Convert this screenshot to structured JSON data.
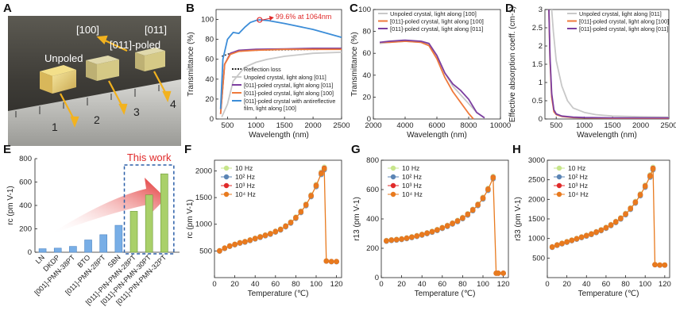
{
  "panel_labels": {
    "a": "A",
    "b": "B",
    "c": "C",
    "d": "D",
    "e": "E",
    "f": "F",
    "g": "G",
    "h": "H"
  },
  "colors": {
    "gray": "#c8c8c8",
    "orange": "#ef7a3c",
    "purple": "#7c3fa0",
    "blue": "#3c8dd8",
    "red": "#e02a2a",
    "lightgreen": "#c7e58a",
    "steelblue": "#5b85b5",
    "dkorange": "#e87a1e",
    "green_bar": "#9fcf63",
    "blue_bar": "#6fa8e0"
  },
  "photo": {
    "labels": {
      "unpoled": "Unpoled",
      "dir100": "[100]",
      "poled": "[011]-poled",
      "dir011": "[011]"
    },
    "ruler_numbers": [
      "1",
      "2",
      "3",
      "4"
    ]
  },
  "chart_data": [
    {
      "id": "B",
      "type": "line",
      "xlabel": "Wavelength (nm)",
      "ylabel": "Transmittance (%)",
      "xlim": [
        300,
        2500
      ],
      "ylim": [
        0,
        110
      ],
      "xticks": [
        500,
        1000,
        1500,
        2000,
        2500
      ],
      "yticks": [
        0,
        20,
        40,
        60,
        80,
        100
      ],
      "annotation": "99.6% at 1064nm",
      "legend": [
        "Reflection loss",
        "Unpoled crystal, light along [011]",
        "[011]-poled crystal, light along [011]",
        "[011]-poled crystal, light along [100]",
        "[011]-poled crystal with antireflective film, light along [100]"
      ],
      "series": [
        {
          "name": "Reflection loss",
          "color": "#222222",
          "dashed": true,
          "x": [
            400,
            600,
            800,
            1000,
            1500,
            2000,
            2500
          ],
          "y": [
            63,
            67,
            68.5,
            69,
            69.5,
            69.8,
            70
          ]
        },
        {
          "name": "Unpoled crystal, light along [011]",
          "color": "#c8c8c8",
          "x": [
            400,
            500,
            600,
            800,
            1000,
            1200,
            1500,
            2000,
            2500
          ],
          "y": [
            2,
            15,
            38,
            52,
            57,
            60,
            63,
            66,
            67
          ]
        },
        {
          "name": "[011]-poled crystal, light along [011]",
          "color": "#7c3fa0",
          "x": [
            380,
            450,
            550,
            700,
            1000,
            1500,
            2000,
            2500
          ],
          "y": [
            5,
            55,
            66,
            69,
            70,
            70.5,
            71,
            71
          ]
        },
        {
          "name": "[011]-poled crystal, light along [100]",
          "color": "#ef7a3c",
          "x": [
            380,
            450,
            550,
            700,
            1000,
            1500,
            2000,
            2500
          ],
          "y": [
            5,
            55,
            65,
            68,
            69,
            70,
            70,
            70
          ]
        },
        {
          "name": "[011]-poled crystal with antireflective film, light along [100]",
          "color": "#3c8dd8",
          "x": [
            380,
            420,
            500,
            600,
            700,
            800,
            900,
            1000,
            1064,
            1200,
            1500,
            2000,
            2500
          ],
          "y": [
            10,
            60,
            80,
            87,
            86,
            92,
            97,
            99,
            99.6,
            99,
            96,
            90,
            82
          ]
        }
      ]
    },
    {
      "id": "C",
      "type": "line",
      "xlabel": "Wavelength (nm)",
      "ylabel": "Transmittance (%)",
      "xlim": [
        2000,
        10000
      ],
      "ylim": [
        0,
        100
      ],
      "xticks": [
        2000,
        4000,
        6000,
        8000,
        10000
      ],
      "yticks": [
        0,
        20,
        40,
        60,
        80,
        100
      ],
      "legend": [
        "Unpoled crystal, light along [100]",
        "[011]-poled crystal, light along [100]",
        "[011]-poled crystal, light along [011]"
      ],
      "series": [
        {
          "name": "Unpoled crystal, light along [100]",
          "color": "#c8c8c8",
          "x": [
            2400,
            3000,
            4000,
            5000,
            5500,
            6000,
            6500,
            7000,
            7500,
            8000,
            8500,
            9000
          ],
          "y": [
            69,
            70,
            71,
            70,
            68,
            58,
            42,
            30,
            22,
            14,
            6,
            1
          ]
        },
        {
          "name": "[011]-poled crystal, light along [100]",
          "color": "#ef7a3c",
          "x": [
            2400,
            3000,
            4000,
            5000,
            5500,
            6000,
            6500,
            7000,
            7500,
            8000,
            8300
          ],
          "y": [
            70,
            70,
            71,
            70,
            67,
            55,
            38,
            25,
            15,
            5,
            0
          ]
        },
        {
          "name": "[011]-poled crystal, light along [011]",
          "color": "#7c3fa0",
          "x": [
            2400,
            3000,
            4000,
            5000,
            5500,
            6000,
            6500,
            7000,
            7500,
            8000,
            8500,
            9000
          ],
          "y": [
            70,
            71,
            72,
            71,
            69,
            58,
            42,
            32,
            26,
            18,
            6,
            1
          ]
        }
      ]
    },
    {
      "id": "D",
      "type": "line",
      "xlabel": "Wavelength (nm)",
      "ylabel": "Effective absorption coeff. (cm-1)",
      "xlim": [
        300,
        2500
      ],
      "ylim": [
        0,
        3.0
      ],
      "xticks": [
        500,
        1000,
        1500,
        2000,
        2500
      ],
      "yticks": [
        0,
        0.5,
        1.0,
        1.5,
        2.0,
        2.5,
        3.0
      ],
      "legend": [
        "Unpoled crystal, light along [011]",
        "[011]-poled crystal, light along [100]",
        "[011]-poled crystal, light along [011]"
      ],
      "series": [
        {
          "name": "Unpoled crystal, light along [011]",
          "color": "#c8c8c8",
          "x": [
            420,
            450,
            500,
            600,
            700,
            800,
            1000,
            1200,
            1500,
            2000,
            2500
          ],
          "y": [
            3.0,
            2.4,
            1.6,
            0.9,
            0.5,
            0.3,
            0.18,
            0.12,
            0.08,
            0.06,
            0.05
          ]
        },
        {
          "name": "[011]-poled crystal, light along [100]",
          "color": "#ef7a3c",
          "x": [
            370,
            390,
            420,
            460,
            500,
            600,
            800,
            1000,
            1500,
            2000,
            2500
          ],
          "y": [
            3.0,
            1.6,
            0.6,
            0.2,
            0.12,
            0.07,
            0.04,
            0.03,
            0.02,
            0.02,
            0.02
          ]
        },
        {
          "name": "[011]-poled crystal, light along [011]",
          "color": "#7c3fa0",
          "x": [
            370,
            390,
            420,
            460,
            500,
            600,
            800,
            1000,
            1500,
            2000,
            2500
          ],
          "y": [
            3.0,
            1.7,
            0.7,
            0.25,
            0.14,
            0.08,
            0.05,
            0.04,
            0.03,
            0.03,
            0.03
          ]
        }
      ]
    },
    {
      "id": "E",
      "type": "bar",
      "ylabel": "rc (pm V-1)",
      "ylim": [
        0,
        800
      ],
      "yticks": [
        0,
        200,
        400,
        600,
        800
      ],
      "annotation": "This work",
      "categories": [
        "LN",
        "DKDP",
        "[001]-PMN-38PT",
        "BTO",
        "[011]-PMN-28PT",
        "SBN",
        "[011]-PIN-PMN-28PT",
        "[011]-PIN-PMN-30PT",
        "[011]-PIN-PMN-32PT"
      ],
      "values": [
        30,
        35,
        50,
        105,
        150,
        230,
        350,
        490,
        670
      ],
      "highlight_from": 6
    },
    {
      "id": "F",
      "type": "scatter",
      "xlabel": "Temperature (℃)",
      "ylabel": "rc (pm V-1)",
      "xlim": [
        0,
        125
      ],
      "ylim": [
        0,
        2200
      ],
      "xticks": [
        0,
        20,
        40,
        60,
        80,
        100,
        120
      ],
      "yticks": [
        500,
        1000,
        1500,
        2000
      ],
      "legend": [
        "10 Hz",
        "10² Hz",
        "10³ Hz",
        "10⁴ Hz"
      ],
      "x": [
        5,
        10,
        15,
        20,
        25,
        30,
        35,
        40,
        45,
        50,
        55,
        60,
        65,
        70,
        75,
        80,
        85,
        90,
        95,
        100,
        105,
        108,
        110,
        115,
        120
      ],
      "y": [
        500,
        550,
        590,
        620,
        650,
        670,
        700,
        730,
        760,
        790,
        820,
        860,
        900,
        960,
        1030,
        1120,
        1230,
        1360,
        1530,
        1720,
        1950,
        2040,
        310,
        300,
        300
      ]
    },
    {
      "id": "G",
      "type": "scatter",
      "xlabel": "Temperature (℃)",
      "ylabel": "r13 (pm V-1)",
      "xlim": [
        0,
        125
      ],
      "ylim": [
        0,
        800
      ],
      "xticks": [
        0,
        20,
        40,
        60,
        80,
        100,
        120
      ],
      "yticks": [
        0,
        200,
        400,
        600,
        800
      ],
      "legend": [
        "10 Hz",
        "10² Hz",
        "10³ Hz",
        "10⁴ Hz"
      ],
      "x": [
        5,
        10,
        15,
        20,
        25,
        30,
        35,
        40,
        45,
        50,
        55,
        60,
        65,
        70,
        75,
        80,
        85,
        90,
        95,
        100,
        105,
        110,
        113,
        115,
        120
      ],
      "y": [
        250,
        255,
        258,
        262,
        268,
        275,
        283,
        292,
        302,
        312,
        324,
        338,
        352,
        368,
        385,
        405,
        430,
        460,
        495,
        540,
        600,
        680,
        30,
        30,
        30
      ]
    },
    {
      "id": "H",
      "type": "scatter",
      "xlabel": "Temperature (℃)",
      "ylabel": "r33 (pm V-1)",
      "xlim": [
        0,
        125
      ],
      "ylim": [
        0,
        3000
      ],
      "xticks": [
        0,
        20,
        40,
        60,
        80,
        100,
        120
      ],
      "yticks": [
        500,
        1000,
        1500,
        2000,
        2500,
        3000
      ],
      "legend": [
        "10 Hz",
        "10² Hz",
        "10³ Hz",
        "10⁴ Hz"
      ],
      "x": [
        5,
        10,
        15,
        20,
        25,
        30,
        35,
        40,
        45,
        50,
        55,
        60,
        65,
        70,
        75,
        80,
        85,
        90,
        95,
        100,
        105,
        108,
        110,
        115,
        120
      ],
      "y": [
        780,
        830,
        870,
        910,
        950,
        990,
        1030,
        1070,
        1110,
        1160,
        1210,
        1270,
        1340,
        1420,
        1510,
        1620,
        1760,
        1920,
        2110,
        2330,
        2590,
        2780,
        330,
        320,
        320
      ]
    }
  ]
}
